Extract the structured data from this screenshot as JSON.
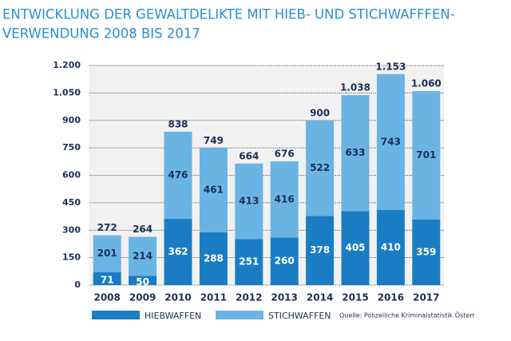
{
  "chart_data": {
    "type": "stacked_bar",
    "title": [
      "ENTWICKLUNG DER GEWALTDELIKTE MIT HIEB- UND STICHWAFFFEN-",
      "VERWENDUNG 2008 BIS 2017"
    ],
    "categories": [
      "2008",
      "2009",
      "2010",
      "2011",
      "2012",
      "2013",
      "2014",
      "2015",
      "2016",
      "2017"
    ],
    "series": [
      {
        "name": "HIEBWAFFEN",
        "color": "#1a7dc4",
        "values": [
          71,
          50,
          362,
          288,
          251,
          260,
          378,
          405,
          410,
          359
        ]
      },
      {
        "name": "STICHWAFFEN",
        "color": "#6ab4e4",
        "values": [
          201,
          214,
          476,
          461,
          413,
          416,
          522,
          633,
          743,
          701
        ]
      }
    ],
    "totals": {
      "values": [
        272,
        264,
        838,
        749,
        664,
        676,
        900,
        1038,
        1153,
        1060
      ],
      "value_labels": [
        "272",
        "264",
        "838",
        "749",
        "664",
        "676",
        "900",
        "1.038",
        "1.153",
        "1.060"
      ]
    },
    "ylim": [
      0,
      1200
    ],
    "yticks": [
      0,
      150,
      300,
      450,
      600,
      750,
      900,
      {
        "value": 1050,
        "label": "1.050"
      },
      {
        "value": 1200,
        "label": "1.200"
      }
    ],
    "grid": true,
    "source": "Quelle:  Polizeiliche Kriminalstatistik Österr"
  }
}
